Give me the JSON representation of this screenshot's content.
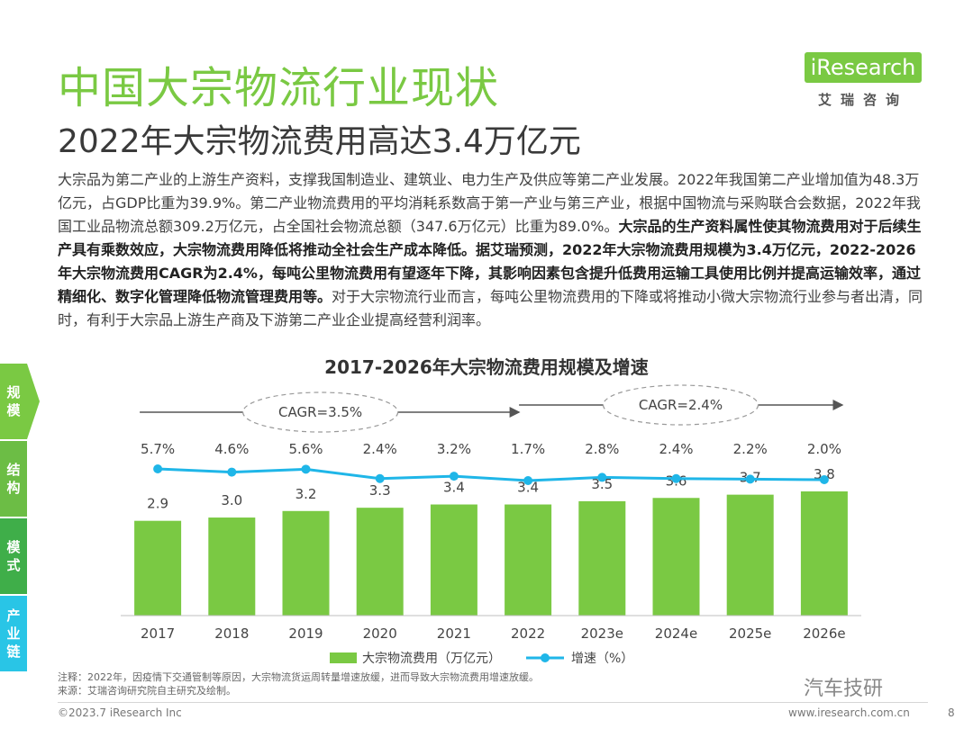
{
  "header": {
    "title": "中国大宗物流行业现状",
    "subtitle": "2022年大宗物流费用高达3.4万亿元"
  },
  "logo": {
    "brand": "iResearch",
    "brand_cn": "艾瑞咨询"
  },
  "paragraph": {
    "p1": "大宗品为第二产业的上游生产资料，支撑我国制造业、建筑业、电力生产及供应等第二产业发展。2022年我国第二产业增加值为48.3万亿元，占GDP比重为39.9%。第二产业物流费用的平均消耗系数高于第一产业与第三产业，根据中国物流与采购联合会数据，2022年我国工业品物流总额309.2万亿元，占全国社会物流总额（347.6万亿元）比重为89.0%。",
    "p2_bold": "大宗品的生产资料属性使其物流费用对于后续生产具有乘数效应，大宗物流费用降低将推动全社会生产成本降低。据艾瑞预测，2022年大宗物流费用规模为3.4万亿元，2022-2026年大宗物流费用CAGR为2.4%，每吨公里物流费用有望逐年下降，其影响因素包含提升低费用运输工具使用比例并提高运输效率，通过精细化、数字化管理降低物流管理费用等。",
    "p3": "对于大宗物流行业而言，每吨公里物流费用的下降或将推动小微大宗物流行业参与者出清，同时，有利于大宗品上游生产商及下游第二产业企业提高经营利润率。"
  },
  "side_tabs": [
    {
      "label": "规模",
      "color": "#7ac943"
    },
    {
      "label": "结构",
      "color": "#6cbd45"
    },
    {
      "label": "模式",
      "color": "#3fae49"
    },
    {
      "label": "产业链",
      "color": "#29c5e6"
    }
  ],
  "chart_data": {
    "type": "bar",
    "title": "2017-2026年大宗物流费用规模及增速",
    "categories": [
      "2017",
      "2018",
      "2019",
      "2020",
      "2021",
      "2022",
      "2023e",
      "2024e",
      "2025e",
      "2026e"
    ],
    "series": [
      {
        "name": "大宗物流费用（万亿元）",
        "type": "bar",
        "color": "#7ac943",
        "values": [
          2.9,
          3.0,
          3.2,
          3.3,
          3.4,
          3.4,
          3.5,
          3.6,
          3.7,
          3.8
        ],
        "labels": [
          "2.9",
          "3.0",
          "3.2",
          "3.3",
          "3.4",
          "3.4",
          "3.5",
          "3.6",
          "3.7",
          "3.8"
        ]
      },
      {
        "name": "增速（%）",
        "type": "line",
        "color": "#1fb6e8",
        "values": [
          5.7,
          4.6,
          5.6,
          2.4,
          3.2,
          1.7,
          2.8,
          2.4,
          2.2,
          2.0
        ],
        "labels": [
          "5.7%",
          "4.6%",
          "5.6%",
          "2.4%",
          "3.2%",
          "1.7%",
          "2.8%",
          "2.4%",
          "2.2%",
          "2.0%"
        ]
      }
    ],
    "annotations": [
      {
        "text": "CAGR=3.5%",
        "from": "2017",
        "to": "2022"
      },
      {
        "text": "CAGR=2.4%",
        "from": "2022",
        "to": "2026e"
      }
    ],
    "legend_position": "bottom"
  },
  "footnotes": {
    "note": "注释：2022年，因疫情下交通管制等原因，大宗物流货运周转量增速放缓，进而导致大宗物流费用增速放缓。",
    "source": "来源：艾瑞咨询研究院自主研究及绘制。"
  },
  "footer": {
    "copyright": "©2023.7 iResearch Inc",
    "website": "www.iresearch.com.cn",
    "page": "8",
    "watermark": "汽车技研"
  }
}
